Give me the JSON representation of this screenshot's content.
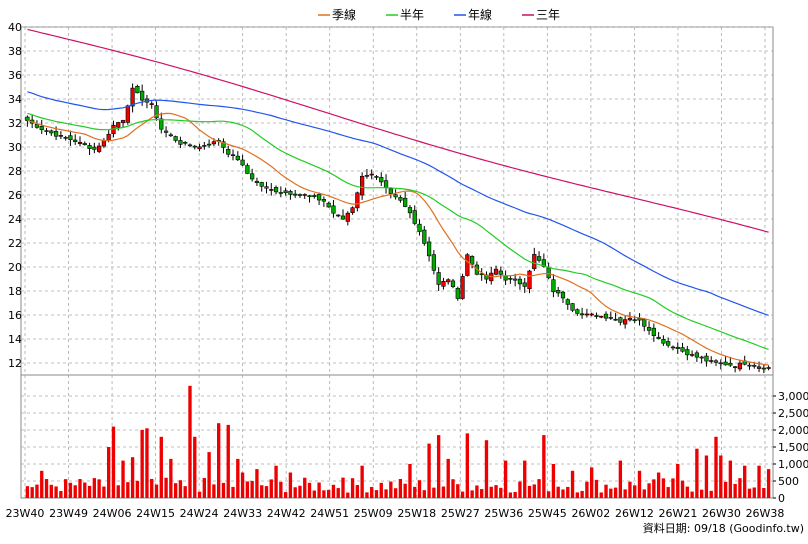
{
  "chart_data": {
    "type": "candlestick+line+bar",
    "legend": [
      {
        "name": "季線",
        "color": "#e07020"
      },
      {
        "name": "半年",
        "color": "#22cc22"
      },
      {
        "name": "年線",
        "color": "#2255ee"
      },
      {
        "name": "三年",
        "color": "#cc1166"
      }
    ],
    "legend_position": "top-center",
    "price_axis": {
      "min": 11,
      "max": 40,
      "ticks": [
        "12",
        "14",
        "16",
        "18",
        "20",
        "22",
        "24",
        "26",
        "28",
        "30",
        "32",
        "34",
        "36",
        "38",
        "40"
      ]
    },
    "volume_axis": {
      "min": 0,
      "max": 3500,
      "ticks": [
        "0",
        "500",
        "1,000",
        "1,500",
        "2,000",
        "2,500",
        "3,000"
      ]
    },
    "x_ticks": [
      "23W40",
      "23W49",
      "24W06",
      "24W15",
      "24W24",
      "24W33",
      "24W42",
      "24W51",
      "25W09",
      "25W18",
      "25W27",
      "25W36",
      "25W45",
      "26W02",
      "26W12",
      "26W21",
      "26W30",
      "26W38"
    ],
    "weeks": 156,
    "grid": true,
    "close_anchors": [
      [
        0,
        32.2
      ],
      [
        3,
        31.5
      ],
      [
        6,
        31.0
      ],
      [
        10,
        30.5
      ],
      [
        14,
        29.8
      ],
      [
        16,
        30.5
      ],
      [
        18,
        31.8
      ],
      [
        20,
        32.3
      ],
      [
        22,
        34.8
      ],
      [
        24,
        34.0
      ],
      [
        26,
        33.5
      ],
      [
        28,
        31.5
      ],
      [
        32,
        30.3
      ],
      [
        36,
        30.0
      ],
      [
        40,
        30.5
      ],
      [
        42,
        29.5
      ],
      [
        44,
        29.0
      ],
      [
        46,
        27.8
      ],
      [
        48,
        27.0
      ],
      [
        50,
        26.5
      ],
      [
        54,
        26.2
      ],
      [
        58,
        26.0
      ],
      [
        62,
        25.5
      ],
      [
        64,
        24.5
      ],
      [
        66,
        24.0
      ],
      [
        68,
        25.0
      ],
      [
        70,
        27.5
      ],
      [
        72,
        27.8
      ],
      [
        74,
        27.0
      ],
      [
        76,
        26.0
      ],
      [
        78,
        25.5
      ],
      [
        80,
        24.5
      ],
      [
        82,
        23.0
      ],
      [
        84,
        21.0
      ],
      [
        86,
        18.5
      ],
      [
        88,
        19.0
      ],
      [
        90,
        17.5
      ],
      [
        92,
        21.0
      ],
      [
        94,
        19.5
      ],
      [
        96,
        19.0
      ],
      [
        98,
        19.8
      ],
      [
        100,
        19.0
      ],
      [
        102,
        18.8
      ],
      [
        104,
        18.5
      ],
      [
        106,
        21.0
      ],
      [
        108,
        20.0
      ],
      [
        110,
        18.0
      ],
      [
        112,
        17.5
      ],
      [
        114,
        16.5
      ],
      [
        116,
        16.0
      ],
      [
        118,
        16.0
      ],
      [
        122,
        15.8
      ],
      [
        124,
        15.5
      ],
      [
        126,
        15.8
      ],
      [
        128,
        15.5
      ],
      [
        130,
        14.8
      ],
      [
        132,
        14.0
      ],
      [
        134,
        13.5
      ],
      [
        136,
        13.2
      ],
      [
        138,
        12.8
      ],
      [
        140,
        12.5
      ],
      [
        142,
        12.2
      ],
      [
        144,
        12.0
      ],
      [
        146,
        11.9
      ],
      [
        148,
        11.8
      ],
      [
        150,
        12.0
      ],
      [
        152,
        11.8
      ],
      [
        155,
        11.6
      ]
    ],
    "volume_highlights": [
      [
        3,
        800
      ],
      [
        17,
        1500
      ],
      [
        18,
        2100
      ],
      [
        20,
        1100
      ],
      [
        22,
        1200
      ],
      [
        24,
        2000
      ],
      [
        25,
        2050
      ],
      [
        28,
        1800
      ],
      [
        30,
        1150
      ],
      [
        34,
        3300
      ],
      [
        35,
        1800
      ],
      [
        38,
        1350
      ],
      [
        40,
        2200
      ],
      [
        42,
        2150
      ],
      [
        44,
        1150
      ],
      [
        45,
        750
      ],
      [
        48,
        850
      ],
      [
        52,
        950
      ],
      [
        55,
        750
      ],
      [
        66,
        600
      ],
      [
        70,
        950
      ],
      [
        80,
        1000
      ],
      [
        84,
        1600
      ],
      [
        86,
        1850
      ],
      [
        88,
        1150
      ],
      [
        92,
        1900
      ],
      [
        96,
        1700
      ],
      [
        100,
        1100
      ],
      [
        104,
        1100
      ],
      [
        108,
        1850
      ],
      [
        110,
        1000
      ],
      [
        114,
        800
      ],
      [
        118,
        900
      ],
      [
        124,
        1100
      ],
      [
        128,
        800
      ],
      [
        132,
        750
      ],
      [
        136,
        1000
      ],
      [
        140,
        1450
      ],
      [
        142,
        1250
      ],
      [
        144,
        1800
      ],
      [
        145,
        1250
      ],
      [
        147,
        1100
      ],
      [
        150,
        950
      ],
      [
        153,
        950
      ],
      [
        155,
        850
      ]
    ]
  },
  "footer": "資料日期: 09/18  (Goodinfo.tw)"
}
